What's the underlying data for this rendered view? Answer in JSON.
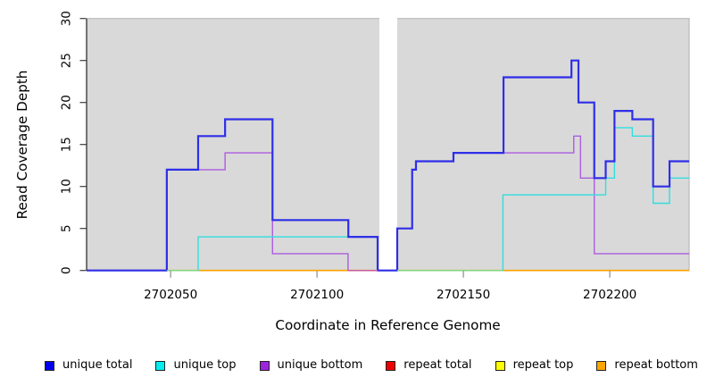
{
  "chart_data": {
    "type": "line",
    "subtype": "step",
    "title": "",
    "xlabel": "Coordinate in Reference Genome",
    "ylabel": "Read Coverage Depth",
    "xlim": [
      2702021.3,
      2702227.1
    ],
    "ylim": [
      0,
      30
    ],
    "x_ticks": [
      2702050,
      2702100,
      2702150,
      2702200
    ],
    "y_ticks": [
      0,
      5,
      10,
      15,
      20,
      25,
      30
    ],
    "plot_bg": "#d9d9d9",
    "border_color": "#b9b9b9",
    "axis_color": "#333333",
    "x_tick_color": "#8c8c8c",
    "y_tick_color": "#3a3a3a",
    "grid": "off",
    "legend_position": "bottom",
    "gap_band": {
      "from": 2702121.3,
      "to": 2702127.4,
      "color": "#ffffff"
    },
    "series": [
      {
        "name": "unique total",
        "color": "#2e2ee8",
        "legend_color": "#0000ee",
        "width": 2.2,
        "z": 6,
        "steps": [
          [
            2702021.3,
            0
          ],
          [
            2702048.7,
            12
          ],
          [
            2702059.4,
            16
          ],
          [
            2702068.6,
            18
          ],
          [
            2702084.8,
            6
          ],
          [
            2702110.7,
            4
          ],
          [
            2702120.7,
            0
          ],
          [
            2702127.4,
            5
          ],
          [
            2702132.5,
            12
          ],
          [
            2702133.8,
            13
          ],
          [
            2702146.6,
            14
          ],
          [
            2702163.7,
            23
          ],
          [
            2702186.9,
            25
          ],
          [
            2702189.3,
            20
          ],
          [
            2702194.7,
            11
          ],
          [
            2702198.6,
            13
          ],
          [
            2702201.6,
            19
          ],
          [
            2702207.7,
            18
          ],
          [
            2702214.8,
            10
          ],
          [
            2702220.4,
            13
          ]
        ],
        "x_end": 2702227.1
      },
      {
        "name": "unique top",
        "color": "#33dddd",
        "legend_color": "#00eeee",
        "width": 1.4,
        "z": 5,
        "steps": [
          [
            2702021.3,
            0
          ],
          [
            2702059.4,
            4
          ],
          [
            2702120.7,
            0
          ],
          [
            2702163.5,
            9
          ],
          [
            2702198.6,
            11
          ],
          [
            2702201.6,
            17
          ],
          [
            2702207.7,
            16
          ],
          [
            2702214.8,
            8
          ],
          [
            2702220.4,
            11
          ]
        ],
        "x_end": 2702227.1
      },
      {
        "name": "unique bottom",
        "color": "#ad5ce0",
        "legend_color": "#9d24dd",
        "width": 1.4,
        "z": 4,
        "steps": [
          [
            2702021.3,
            0
          ],
          [
            2702048.7,
            12
          ],
          [
            2702068.6,
            14
          ],
          [
            2702084.8,
            2
          ],
          [
            2702110.6,
            0
          ],
          [
            2702127.4,
            5
          ],
          [
            2702132.5,
            12
          ],
          [
            2702133.8,
            13
          ],
          [
            2702146.6,
            14
          ],
          [
            2702187.7,
            16
          ],
          [
            2702190.0,
            11
          ],
          [
            2702194.7,
            2
          ]
        ],
        "x_end": 2702227.1
      },
      {
        "name": "repeat total",
        "color": "#dd2222",
        "legend_color": "#ee0000",
        "width": 1.4,
        "z": 1,
        "steps": [
          [
            2702021.3,
            0
          ]
        ],
        "x_end": 2702227.1
      },
      {
        "name": "repeat top",
        "color": "#ffff00",
        "legend_color": "#ffff00",
        "width": 1.4,
        "z": 2,
        "steps": [
          [
            2702021.3,
            0
          ]
        ],
        "x_end": 2702227.1
      },
      {
        "name": "repeat bottom",
        "color": "#ffa200",
        "legend_color": "#ffa500",
        "width": 1.6,
        "z": 3,
        "steps": [
          [
            2702021.3,
            0
          ]
        ],
        "x_end": 2702227.1
      }
    ],
    "baseline_overlap_segments": [
      {
        "from": 2702048.7,
        "to": 2702059.4,
        "color": "#82d882"
      },
      {
        "from": 2702110.6,
        "to": 2702120.7,
        "color": "#c75b9b"
      },
      {
        "from": 2702127.4,
        "to": 2702163.5,
        "color": "#82d882"
      }
    ]
  }
}
